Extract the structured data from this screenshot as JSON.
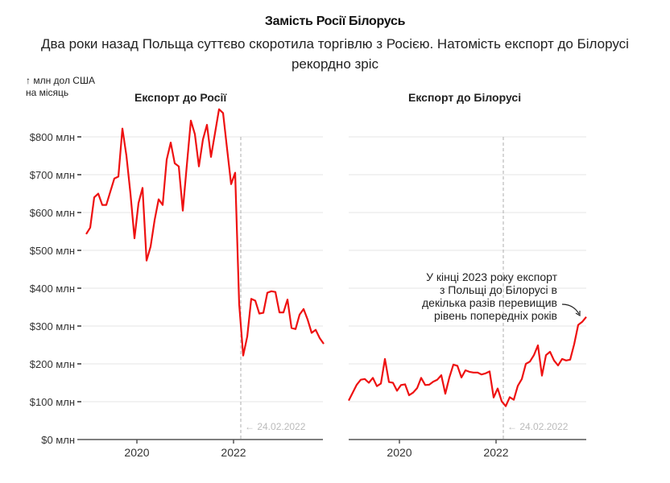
{
  "header": {
    "title": "Замість Росії Білорусь",
    "subtitle": "Два роки назад Польща суттєво скоротила торгівлю з Росією. Натомість експорт до Білорусі рекордно зріс",
    "unit_line1": "↑ млн дол США",
    "unit_line2": "на місяць"
  },
  "colors": {
    "line": "#ee1111",
    "grid": "#e6e6e6",
    "axis": "#555555",
    "event_line": "#bbbbbb",
    "event_text": "#bbbbbb"
  },
  "chart_data": [
    {
      "type": "line",
      "title": "Експорт до Росії",
      "xlabel": "",
      "ylabel": "млн дол США на місяць",
      "x_start": "2019-01",
      "x_frequency": "monthly",
      "x_ticks": [
        "2020",
        "2022"
      ],
      "y_ticks": [
        "$0 млн",
        "$100 млн",
        "$200 млн",
        "$300 млн",
        "$400 млн",
        "$500 млн",
        "$600 млн",
        "$700 млн",
        "$800 млн"
      ],
      "y_tick_values": [
        0,
        100,
        200,
        300,
        400,
        500,
        600,
        700,
        800
      ],
      "ylim": [
        0,
        880
      ],
      "grid": true,
      "event": {
        "date": "2022-02-24",
        "label": "← 24.02.2022"
      },
      "series": [
        {
          "name": "Експорт до Росії",
          "values": [
            543,
            560,
            640,
            650,
            620,
            620,
            655,
            690,
            695,
            822,
            750,
            650,
            532,
            625,
            665,
            473,
            510,
            580,
            635,
            620,
            740,
            785,
            730,
            722,
            605,
            725,
            843,
            807,
            722,
            793,
            832,
            747,
            810,
            873,
            863,
            768,
            675,
            705,
            358,
            222,
            272,
            372,
            367,
            333,
            335,
            388,
            392,
            390,
            336,
            336,
            370,
            295,
            292,
            330,
            345,
            317,
            282,
            290,
            268,
            253
          ]
        }
      ]
    },
    {
      "type": "line",
      "title": "Експорт до Білорусі",
      "xlabel": "",
      "ylabel": "млн дол США на місяць",
      "x_start": "2019-01",
      "x_frequency": "monthly",
      "x_ticks": [
        "2020",
        "2022"
      ],
      "y_tick_values": [
        0,
        100,
        200,
        300,
        400,
        500,
        600,
        700,
        800
      ],
      "ylim": [
        0,
        880
      ],
      "grid": true,
      "event": {
        "date": "2022-02-24",
        "label": "← 24.02.2022"
      },
      "annotation": [
        "У кінці 2023 року експорт",
        "з Польщі до Білорусі в",
        "декілька разів перевищив",
        "рівень попередніх років"
      ],
      "series": [
        {
          "name": "Експорт до Білорусі",
          "values": [
            103,
            124,
            145,
            158,
            160,
            150,
            163,
            141,
            148,
            213,
            152,
            150,
            129,
            144,
            146,
            117,
            124,
            136,
            163,
            144,
            145,
            153,
            158,
            170,
            121,
            164,
            198,
            195,
            164,
            183,
            179,
            177,
            177,
            172,
            175,
            180,
            111,
            135,
            101,
            88,
            112,
            105,
            142,
            160,
            200,
            206,
            223,
            249,
            169,
            223,
            232,
            209,
            196,
            213,
            209,
            211,
            252,
            303,
            311,
            324
          ]
        }
      ]
    }
  ]
}
